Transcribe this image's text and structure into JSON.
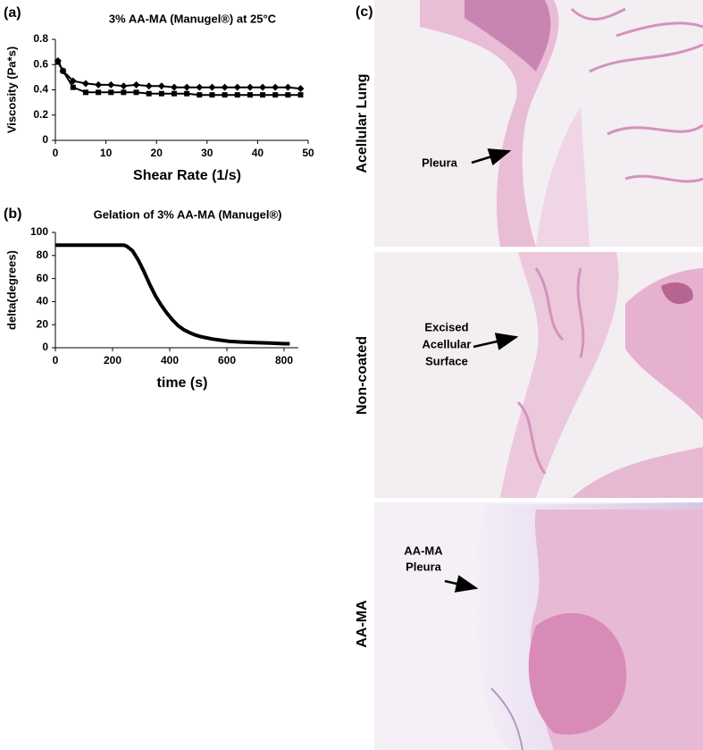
{
  "chart_data": [
    {
      "type": "line",
      "panel": "(a)",
      "title": "3% AA-MA (Manugel®) at 25°C",
      "xlabel": "Shear Rate (1/s)",
      "ylabel": "Viscosity (Pa*s)",
      "x": [
        0.5,
        1.5,
        3.5,
        6,
        8.5,
        11,
        13.5,
        16,
        18.5,
        21,
        23.5,
        26,
        28.5,
        31,
        33.5,
        36,
        38.5,
        41,
        43.5,
        46,
        48.5
      ],
      "series": [
        {
          "color": "#000000",
          "marker": "diamond",
          "values": [
            0.63,
            0.55,
            0.47,
            0.45,
            0.44,
            0.44,
            0.43,
            0.44,
            0.43,
            0.43,
            0.42,
            0.42,
            0.42,
            0.42,
            0.42,
            0.42,
            0.42,
            0.42,
            0.42,
            0.42,
            0.41
          ]
        },
        {
          "color": "#000000",
          "marker": "square",
          "values": [
            0.62,
            0.55,
            0.42,
            0.38,
            0.38,
            0.38,
            0.38,
            0.38,
            0.37,
            0.37,
            0.37,
            0.37,
            0.36,
            0.36,
            0.36,
            0.36,
            0.36,
            0.36,
            0.36,
            0.36,
            0.36
          ]
        }
      ],
      "xlim": [
        0,
        50
      ],
      "xticks": [
        0,
        10,
        20,
        30,
        40,
        50
      ],
      "ylim": [
        0,
        0.8
      ],
      "yticks": [
        0,
        0.2,
        0.4,
        0.6,
        0.8
      ]
    },
    {
      "type": "line",
      "panel": "(b)",
      "title": "Gelation of 3% AA-MA (Manugel®)",
      "xlabel": "time (s)",
      "ylabel": "delta(degrees)",
      "x": [
        0,
        40,
        80,
        120,
        160,
        200,
        240,
        250,
        270,
        290,
        310,
        330,
        350,
        370,
        390,
        410,
        430,
        450,
        470,
        490,
        510,
        530,
        550,
        580,
        610,
        650,
        700,
        750,
        800,
        820
      ],
      "series": [
        {
          "color": "#000000",
          "values": [
            89,
            89,
            89,
            89,
            89,
            89,
            89,
            88,
            84,
            76,
            66,
            55,
            45,
            37,
            30,
            24,
            19,
            15.5,
            13,
            11,
            9.5,
            8.5,
            7.5,
            6.5,
            5.5,
            5,
            4.5,
            4,
            3.5,
            3.5
          ]
        }
      ],
      "xlim": [
        0,
        850
      ],
      "xticks": [
        0,
        200,
        400,
        600,
        800
      ],
      "ylim": [
        0,
        100
      ],
      "yticks": [
        0,
        20,
        40,
        60,
        80,
        100
      ]
    }
  ],
  "micrographs": {
    "panel": "(c)",
    "rows": [
      {
        "label": "Acellular Lung",
        "annotation": [
          "Pleura"
        ]
      },
      {
        "label": "Non-coated",
        "annotation": [
          "Excised",
          "Acellular",
          "Surface"
        ]
      },
      {
        "label": "AA-MA",
        "annotation": [
          "AA-MA",
          "Pleura"
        ]
      }
    ]
  }
}
